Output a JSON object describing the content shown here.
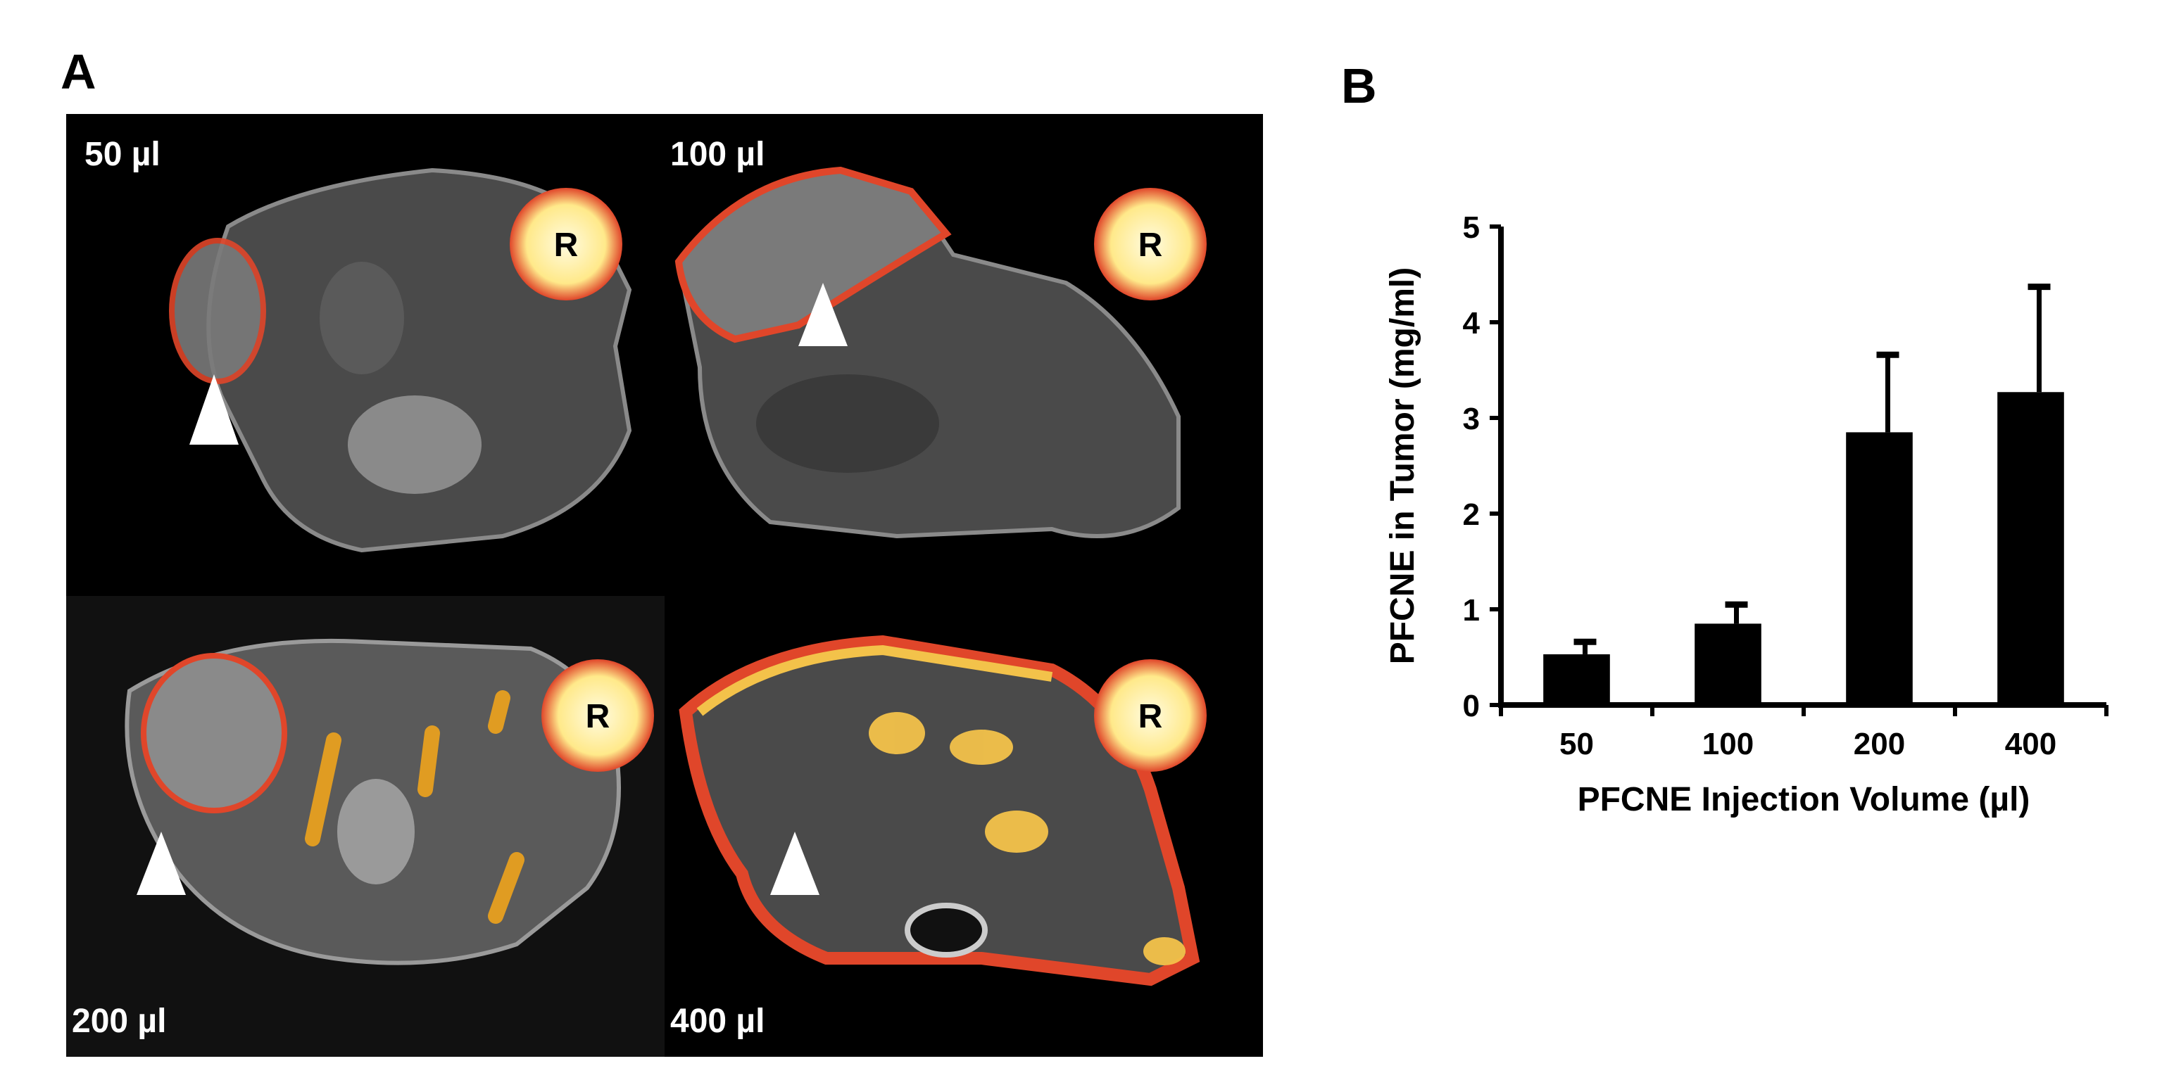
{
  "panels": {
    "a_label": "A",
    "b_label": "B"
  },
  "mri": {
    "volume_labels": [
      "50 µl",
      "100 µl",
      "200 µl",
      "400 µl"
    ],
    "reference_label": "R",
    "colors": {
      "background": "#000000",
      "tissue": "#6e6e6e",
      "signal": "#e0462a",
      "signal_hot": "#fff3b0"
    }
  },
  "chart_data": {
    "type": "bar",
    "categories": [
      "50",
      "100",
      "200",
      "400"
    ],
    "values": [
      0.53,
      0.85,
      2.85,
      3.27
    ],
    "errors": [
      0.13,
      0.2,
      0.81,
      1.1
    ],
    "xlabel": "PFCNE Injection Volume (µl)",
    "ylabel": "PFCNE  in Tumor (mg/ml)",
    "ylim": [
      0,
      5
    ],
    "yticks": [
      0,
      1,
      2,
      3,
      4,
      5
    ],
    "grid": false,
    "bar_color": "#000000"
  }
}
